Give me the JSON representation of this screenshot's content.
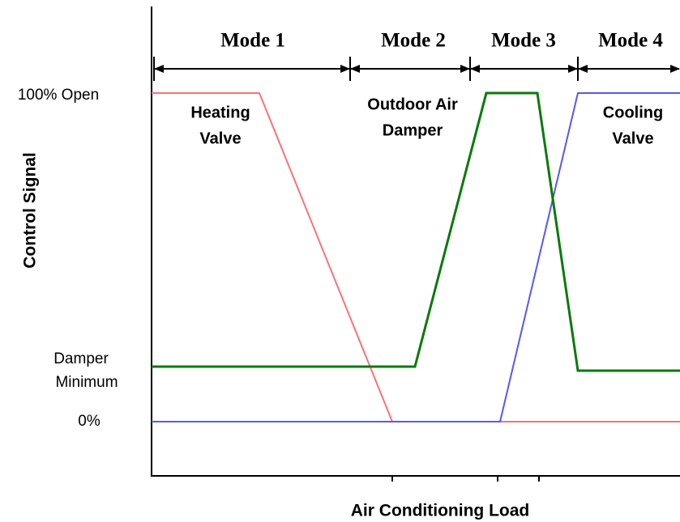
{
  "modes": [
    "Mode 1",
    "Mode 2",
    "Mode 3",
    "Mode 4"
  ],
  "y_labels": {
    "top": "100% Open",
    "middle": [
      "Damper",
      "Minimum"
    ],
    "bottom": "0%"
  },
  "y_axis_label": "Control Signal",
  "x_axis_label": "Air Conditioning Load",
  "curves": {
    "heating": [
      "Heating",
      "Valve"
    ],
    "damper": [
      "Outdoor Air",
      "Damper"
    ],
    "cooling": [
      "Cooling",
      "Valve"
    ]
  }
}
